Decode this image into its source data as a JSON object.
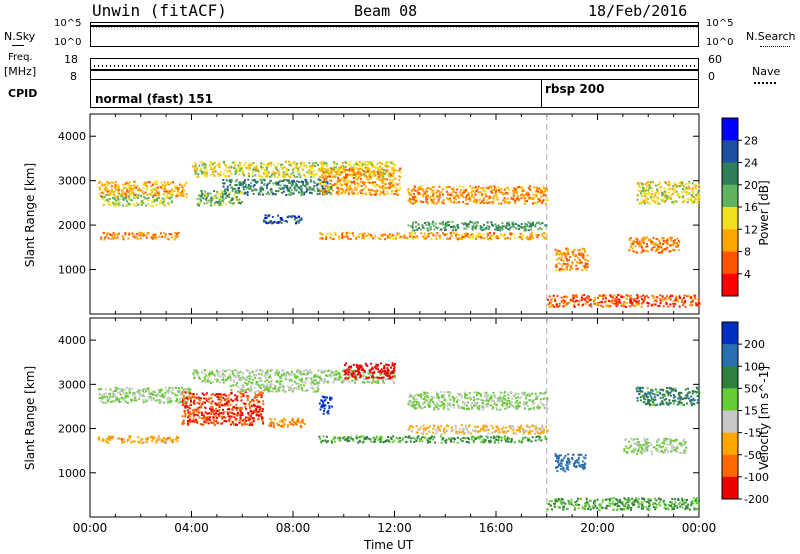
{
  "header": {
    "radar": "Unwin (fitACF)",
    "beam": "Beam 08",
    "date": "18/Feb/2016"
  },
  "strips": {
    "nsky": {
      "label": "N.Sky",
      "ticks": [
        "10^5",
        "10^0"
      ]
    },
    "nsearch": {
      "label": "N.Search",
      "ticks": [
        "10^5",
        "10^0"
      ]
    },
    "freq": {
      "label_line1": "Freq.",
      "label_line2": "[MHz]",
      "ticks": [
        "18",
        "8"
      ]
    },
    "nave": {
      "label": "Nave",
      "ticks": [
        "60",
        "0"
      ]
    },
    "cpid": {
      "label": "CPID"
    }
  },
  "cpid_segments": [
    {
      "label": "normal (fast) 151",
      "start_hour": 0,
      "end_hour": 18.0
    },
    {
      "label": "rbsp 200",
      "start_hour": 18.0,
      "end_hour": 24
    }
  ],
  "colors": {
    "power_scale": [
      "#0000ff",
      "#1f4fa0",
      "#2e7f5a",
      "#5fb35f",
      "#f0e020",
      "#ffa500",
      "#ff5500",
      "#ff0000"
    ],
    "velocity_scale": [
      "#0030c0",
      "#2a6fb0",
      "#2f7f3f",
      "#66cc33",
      "#c8c8c8",
      "#ffa500",
      "#ff6a00",
      "#ee0000"
    ],
    "grid": "#aaaaaa"
  },
  "chart_data": [
    {
      "type": "heatmap",
      "name": "power",
      "ylabel": "Slant Range [km]",
      "xlabel": "Time UT",
      "xlim": [
        0,
        24
      ],
      "ylim": [
        0,
        4500
      ],
      "yticks": [
        "4000",
        "3000",
        "2000",
        "1000"
      ],
      "colorbar": {
        "label": "Power [dB]",
        "ticks": [
          "28",
          "24",
          "20",
          "16",
          "12",
          "8",
          "4"
        ]
      },
      "regions": [
        {
          "t0": 0.3,
          "t1": 3.8,
          "r0": 2650,
          "r1": 3000,
          "v": 10
        },
        {
          "t0": 0.4,
          "t1": 3.2,
          "r0": 2450,
          "r1": 2700,
          "v": 16
        },
        {
          "t0": 0.4,
          "t1": 3.5,
          "r0": 1700,
          "r1": 1850,
          "v": 8
        },
        {
          "t0": 4.0,
          "t1": 12.0,
          "r0": 3100,
          "r1": 3450,
          "v": 14
        },
        {
          "t0": 5.2,
          "t1": 9.5,
          "r0": 2700,
          "r1": 3050,
          "v": 22
        },
        {
          "t0": 4.2,
          "t1": 6.0,
          "r0": 2450,
          "r1": 2800,
          "v": 18
        },
        {
          "t0": 6.8,
          "t1": 8.3,
          "r0": 2050,
          "r1": 2250,
          "v": 26
        },
        {
          "t0": 9.0,
          "t1": 12.2,
          "r0": 2700,
          "r1": 3300,
          "v": 10
        },
        {
          "t0": 12.5,
          "t1": 18.0,
          "r0": 2500,
          "r1": 2900,
          "v": 9
        },
        {
          "t0": 12.5,
          "t1": 18.0,
          "r0": 1900,
          "r1": 2100,
          "v": 20
        },
        {
          "t0": 9.0,
          "t1": 18.0,
          "r0": 1700,
          "r1": 1850,
          "v": 10
        },
        {
          "t0": 18.0,
          "t1": 24.0,
          "r0": 180,
          "r1": 450,
          "v": 6
        },
        {
          "t0": 18.3,
          "t1": 19.6,
          "r0": 1000,
          "r1": 1500,
          "v": 9
        },
        {
          "t0": 21.2,
          "t1": 23.2,
          "r0": 1400,
          "r1": 1750,
          "v": 8
        },
        {
          "t0": 21.5,
          "t1": 24.0,
          "r0": 2500,
          "r1": 3000,
          "v": 14
        }
      ]
    },
    {
      "type": "heatmap",
      "name": "velocity",
      "ylabel": "Slant Range [km]",
      "xlabel": "Time UT",
      "xlim": [
        0,
        24
      ],
      "ylim": [
        0,
        4500
      ],
      "yticks": [
        "4000",
        "3000",
        "2000",
        "1000"
      ],
      "xticks": [
        "00:00",
        "04:00",
        "08:00",
        "12:00",
        "16:00",
        "20:00",
        "00:00"
      ],
      "colorbar": {
        "label": "Velocity [m s^-1]",
        "ticks": [
          "200",
          "100",
          "50",
          "15",
          "-15",
          "-50",
          "-100",
          "-200"
        ]
      },
      "regions": [
        {
          "t0": 0.3,
          "t1": 4.0,
          "r0": 2600,
          "r1": 2950,
          "v": 0
        },
        {
          "t0": 0.3,
          "t1": 3.5,
          "r0": 1700,
          "r1": 1850,
          "v": -60
        },
        {
          "t0": 3.6,
          "t1": 6.8,
          "r0": 2100,
          "r1": 2850,
          "v": -150
        },
        {
          "t0": 4.0,
          "t1": 12.0,
          "r0": 3050,
          "r1": 3350,
          "v": 0
        },
        {
          "t0": 5.5,
          "t1": 9.0,
          "r0": 2850,
          "r1": 3050,
          "v": 0
        },
        {
          "t0": 7.0,
          "t1": 8.5,
          "r0": 2050,
          "r1": 2250,
          "v": -80
        },
        {
          "t0": 9.0,
          "t1": 9.5,
          "r0": 2350,
          "r1": 2750,
          "v": 200
        },
        {
          "t0": 10.0,
          "t1": 12.0,
          "r0": 3150,
          "r1": 3500,
          "v": -200
        },
        {
          "t0": 12.5,
          "t1": 18.0,
          "r0": 2450,
          "r1": 2850,
          "v": 0
        },
        {
          "t0": 12.5,
          "t1": 18.0,
          "r0": 1900,
          "r1": 2100,
          "v": -40
        },
        {
          "t0": 9.0,
          "t1": 18.0,
          "r0": 1700,
          "r1": 1850,
          "v": 30
        },
        {
          "t0": 18.0,
          "t1": 24.0,
          "r0": 180,
          "r1": 450,
          "v": 30
        },
        {
          "t0": 18.3,
          "t1": 19.5,
          "r0": 1050,
          "r1": 1450,
          "v": 110
        },
        {
          "t0": 21.0,
          "t1": 23.5,
          "r0": 1450,
          "r1": 1800,
          "v": 0
        },
        {
          "t0": 21.5,
          "t1": 24.0,
          "r0": 2550,
          "r1": 2950,
          "v": 60
        }
      ]
    }
  ]
}
